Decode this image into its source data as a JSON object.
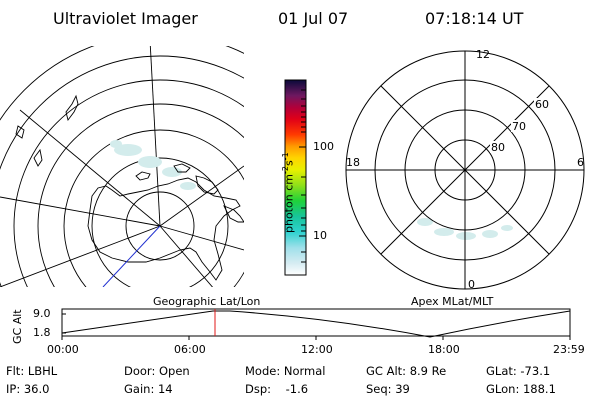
{
  "header": {
    "title": "Ultraviolet Imager",
    "date": "01 Jul 07",
    "time": "07:18:14 UT"
  },
  "colorbar": {
    "label_main": "photon cm",
    "label_sup1": "-2",
    "label_s": "s",
    "label_sup2": "-1",
    "ticks": [
      "100",
      "10"
    ]
  },
  "right_map": {
    "mlt_labels": [
      "12",
      "18",
      "6",
      "0"
    ],
    "lat_labels": [
      "60",
      "70",
      "80"
    ],
    "caption": "Apex MLat/MLT"
  },
  "left_map": {
    "caption": "Geographic Lat/Lon"
  },
  "altitude_plot": {
    "ylabel": "GC Alt",
    "yticks": [
      "9.0",
      "1.8"
    ],
    "xticks": [
      "00:00",
      "06:00",
      "12:00",
      "18:00",
      "23:59"
    ]
  },
  "info": {
    "flt": "Flt: LBHL",
    "door": "Door: Open",
    "mode": "Mode: Normal",
    "gcalt": "GC Alt: 8.9 Re",
    "glat": "GLat: -73.1",
    "ip": "IP: 36.0",
    "gain": "Gain: 14",
    "dsp": "Dsp:    -1.6",
    "seq": "Seq: 39",
    "glon": "GLon: 188.1"
  }
}
